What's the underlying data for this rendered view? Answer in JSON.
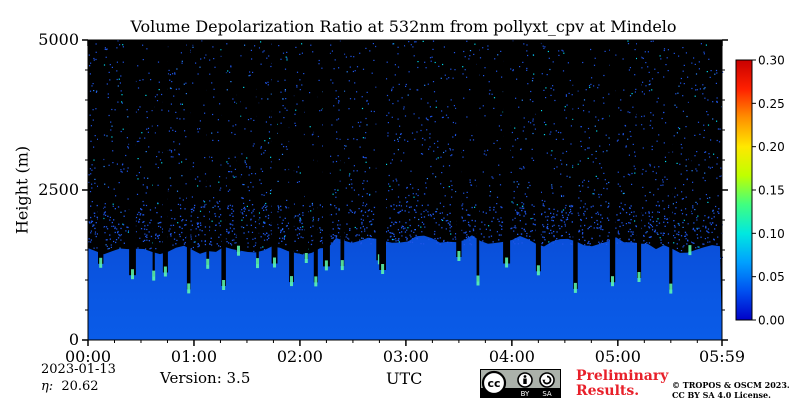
{
  "chart_data": {
    "type": "heatmap",
    "title": "Volume Depolarization Ratio at 532nm from pollyxt_cpv at Mindelo",
    "xlabel": "UTC",
    "ylabel": "Height (m)",
    "x_ticks": [
      "00:00",
      "01:00",
      "02:00",
      "03:00",
      "04:00",
      "05:00",
      "05:59"
    ],
    "x_range_hours": [
      0,
      5.983
    ],
    "y_ticks": [
      0,
      2500,
      5000
    ],
    "y_range_m": [
      0,
      5000
    ],
    "colorbar": {
      "ticks": [
        "0.00",
        "0.05",
        "0.10",
        "0.15",
        "0.20",
        "0.25",
        "0.30"
      ],
      "range": [
        0,
        0.3
      ],
      "colormap": [
        "#0000c8",
        "#0050f0",
        "#00a0ff",
        "#00e8e0",
        "#40ff80",
        "#c0ff00",
        "#ffe800",
        "#ff9000",
        "#ff2000",
        "#c80000"
      ]
    },
    "layers": {
      "aerosol_top_m": 1600,
      "background_value": 0.04,
      "noise_color": "#000000"
    },
    "cloud_columns_hours": [
      0.12,
      0.42,
      0.62,
      0.73,
      0.95,
      1.13,
      1.28,
      1.42,
      1.6,
      1.76,
      1.92,
      2.06,
      2.15,
      2.25,
      2.4,
      2.75,
      2.78,
      3.5,
      3.68,
      3.95,
      4.25,
      4.6,
      4.95,
      5.2,
      5.5,
      5.68
    ]
  },
  "footer": {
    "date": "2023-01-13",
    "eta_label": "η:",
    "eta_value": "20.62",
    "version": "Version: 3.5",
    "preliminary": "Preliminary\nResults.",
    "preliminary_line1": "Preliminary",
    "preliminary_line2": "Results.",
    "copyright_line1": "© TROPOS & OSCM 2023.",
    "copyright_line2": "CC BY SA 4.0 License.",
    "license_badge": {
      "cc": "cc",
      "by": "BY",
      "sa": "SA"
    },
    "preliminary_color": "#e8202a"
  }
}
